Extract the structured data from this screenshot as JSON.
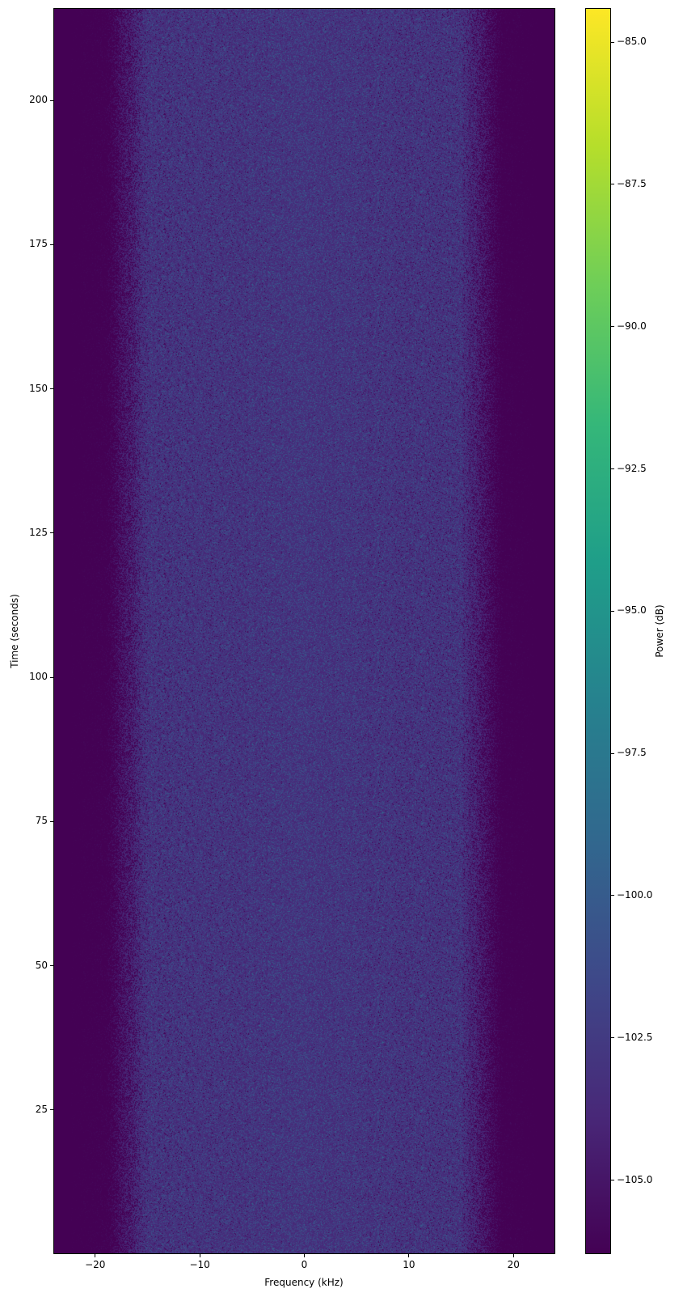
{
  "chart_data": {
    "type": "heatmap",
    "title": "",
    "xlabel": "Frequency (kHz)",
    "ylabel": "Time (seconds)",
    "xlim": [
      -24,
      24
    ],
    "ylim": [
      0,
      216
    ],
    "xticks": [
      -20,
      -10,
      0,
      10,
      20
    ],
    "xtick_labels": [
      "−20",
      "−10",
      "0",
      "10",
      "20"
    ],
    "yticks": [
      25,
      50,
      75,
      100,
      125,
      150,
      175,
      200
    ],
    "ytick_labels": [
      "25",
      "50",
      "75",
      "100",
      "125",
      "150",
      "175",
      "200"
    ],
    "colorbar": {
      "label": "Power (dB)",
      "colormap": "viridis",
      "range": [
        -106.3,
        -84.4
      ],
      "ticks": [
        -85,
        -87.5,
        -90,
        -92.5,
        -95,
        -97.5,
        -100,
        -102.5,
        -105
      ],
      "tick_labels": [
        "−85.0",
        "−87.5",
        "−90.0",
        "−92.5",
        "−95.0",
        "−97.5",
        "−100.0",
        "−102.5",
        "−105.0"
      ]
    },
    "description_of_content": "noise",
    "mean_power_profile": {
      "frequency_khz": [
        -24,
        -19,
        -17,
        -15,
        0,
        15,
        17,
        19,
        24
      ],
      "power_db": [
        -106.3,
        -106.0,
        -105.0,
        -104.3,
        -104.2,
        -104.3,
        -105.0,
        -106.0,
        -106.3
      ]
    },
    "noise_std_db": 1.8,
    "colors": {
      "background": "#440154",
      "noise_peak": "#3b528b"
    }
  }
}
